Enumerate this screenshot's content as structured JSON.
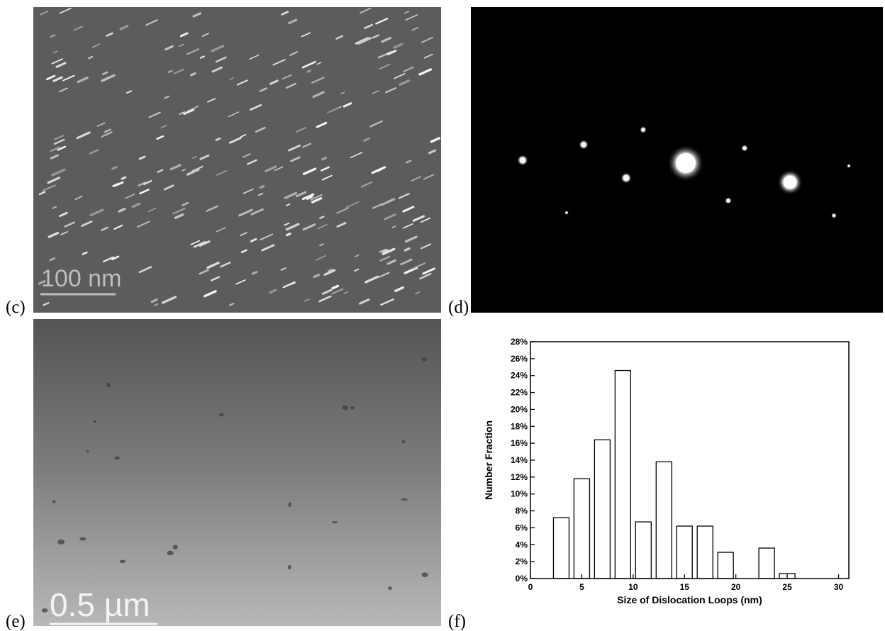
{
  "panels": [
    {
      "label": "(c)",
      "scale_bar": "100 nm"
    },
    {
      "label": "(d)"
    },
    {
      "label": "(e)",
      "scale_bar": "0.5 µm"
    },
    {
      "label": "(f)"
    }
  ],
  "chart_data": {
    "type": "histogram",
    "xlabel": "Size of Dislocation Loops (nm)",
    "ylabel": "Number Fraction",
    "bins": [
      2,
      4,
      6,
      8,
      10,
      12,
      14,
      16,
      18,
      20,
      22,
      24,
      26
    ],
    "values": [
      7.2,
      11.8,
      16.4,
      24.6,
      6.7,
      13.8,
      6.2,
      6.2,
      3.1,
      0,
      3.6,
      0.6
    ],
    "color": "#ffffff",
    "xlim": [
      0,
      31
    ],
    "xticks": [
      0,
      5,
      10,
      15,
      20,
      25,
      30
    ],
    "ylim": [
      0,
      28
    ],
    "yticks": [
      {
        "value": 0,
        "label": "0%"
      },
      {
        "value": 2,
        "label": "2%"
      },
      {
        "value": 4,
        "label": "4%"
      },
      {
        "value": 6,
        "label": "6%"
      },
      {
        "value": 8,
        "label": "8%"
      },
      {
        "value": 10,
        "label": "10%"
      },
      {
        "value": 12,
        "label": "12%"
      },
      {
        "value": 14,
        "label": "14%"
      },
      {
        "value": 16,
        "label": "16%"
      },
      {
        "value": 18,
        "label": "18%"
      },
      {
        "value": 20,
        "label": "20%"
      },
      {
        "value": 22,
        "label": "22%"
      },
      {
        "value": 24,
        "label": "24%"
      },
      {
        "value": 26,
        "label": "26%"
      },
      {
        "value": 28,
        "label": "28%"
      }
    ]
  }
}
